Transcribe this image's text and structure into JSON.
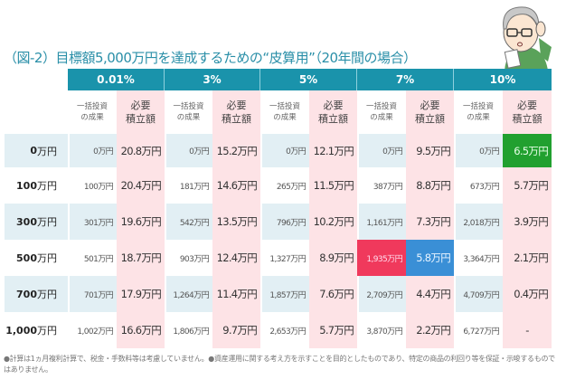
{
  "title": "（図-2）目標額5,000万円を達成するための“皮算用”（20年間の場合）",
  "rates": [
    "0.01%",
    "3%",
    "5%",
    "7%",
    "10%"
  ],
  "subheaders": {
    "lump_sum_line1": "一括投資",
    "lump_sum_line2": "の成果",
    "required_line1": "必要",
    "required_line2": "積立額"
  },
  "rows": [
    {
      "label_num": "0",
      "label_unit": "万円",
      "values": [
        "0万円",
        "20.8万円",
        "0万円",
        "15.2万円",
        "0万円",
        "12.1万円",
        "0万円",
        "9.5万円",
        "0万円",
        "6.5万円"
      ]
    },
    {
      "label_num": "100",
      "label_unit": "万円",
      "values": [
        "100万円",
        "20.4万円",
        "181万円",
        "14.6万円",
        "265万円",
        "11.5万円",
        "387万円",
        "8.8万円",
        "673万円",
        "5.7万円"
      ]
    },
    {
      "label_num": "300",
      "label_unit": "万円",
      "values": [
        "301万円",
        "19.6万円",
        "542万円",
        "13.5万円",
        "796万円",
        "10.2万円",
        "1,161万円",
        "7.3万円",
        "2,018万円",
        "3.9万円"
      ]
    },
    {
      "label_num": "500",
      "label_unit": "万円",
      "values": [
        "501万円",
        "18.7万円",
        "903万円",
        "12.4万円",
        "1,327万円",
        "8.9万円",
        "1,935万円",
        "5.8万円",
        "3,364万円",
        "2.1万円"
      ]
    },
    {
      "label_num": "700",
      "label_unit": "万円",
      "values": [
        "701万円",
        "17.9万円",
        "1,264万円",
        "11.4万円",
        "1,857万円",
        "7.6万円",
        "2,709万円",
        "4.4万円",
        "4,709万円",
        "0.4万円"
      ]
    },
    {
      "label_num": "1,000",
      "label_unit": "万円",
      "values": [
        "1,002万円",
        "16.6万円",
        "1,806万円",
        "9.7万円",
        "2,653万円",
        "5.7万円",
        "3,870万円",
        "2.2万円",
        "6,727万円",
        "-"
      ]
    }
  ],
  "highlight_colors": {
    "green": "#21a02f",
    "red": "#f0395c",
    "blue": "#3a8fd6",
    "header": "#1a93ab"
  },
  "footnote": "●計算は1ヵ月複利計算で、税金・手数料等は考慮していません。●資産運用に関する考え方を示すことを目的としたものであり、特定の商品の利回り等を保証・示唆するものではありません。"
}
